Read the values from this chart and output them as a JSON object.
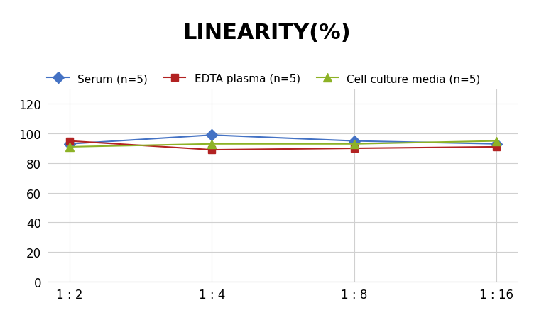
{
  "title": "LINEARITY(%)",
  "x_labels": [
    "1 : 2",
    "1 : 4",
    "1 : 8",
    "1 : 16"
  ],
  "x_positions": [
    0,
    1,
    2,
    3
  ],
  "series": [
    {
      "label": "Serum (n=5)",
      "values": [
        93,
        99,
        95,
        93
      ],
      "color": "#4472C4",
      "marker": "D",
      "markersize": 8,
      "linewidth": 1.5
    },
    {
      "label": "EDTA plasma (n=5)",
      "values": [
        95,
        89,
        90,
        91
      ],
      "color": "#B22222",
      "marker": "s",
      "markersize": 7,
      "linewidth": 1.5
    },
    {
      "label": "Cell culture media (n=5)",
      "values": [
        91,
        93,
        93,
        95
      ],
      "color": "#8DB226",
      "marker": "^",
      "markersize": 8,
      "linewidth": 1.5
    }
  ],
  "ylim": [
    0,
    130
  ],
  "yticks": [
    0,
    20,
    40,
    60,
    80,
    100,
    120
  ],
  "background_color": "#ffffff",
  "grid_color": "#d0d0d0",
  "title_fontsize": 22,
  "legend_fontsize": 11,
  "tick_fontsize": 12
}
